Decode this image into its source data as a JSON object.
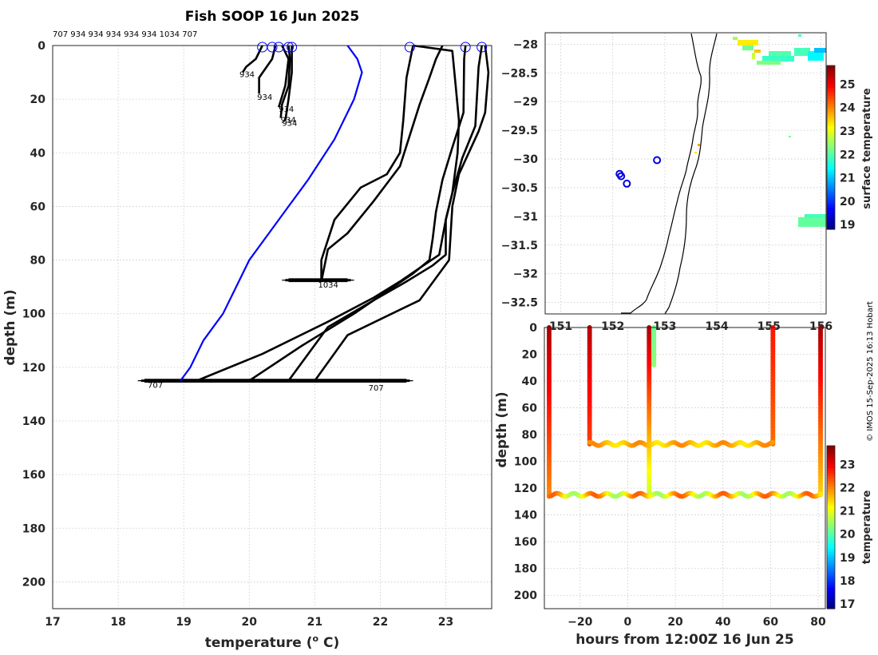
{
  "chart_data": [
    {
      "type": "line",
      "title": "Fish SOOP 16 Jun 2025",
      "xlabel": "temperature (",
      "xlabel_sup": "o",
      "xlabel_unit": " C)",
      "ylabel": "depth (m)",
      "xlim": [
        17,
        23.7
      ],
      "ylim": [
        210,
        0
      ],
      "xticks": [
        17,
        18,
        19,
        20,
        21,
        22,
        23
      ],
      "yticks": [
        0,
        20,
        40,
        60,
        80,
        100,
        120,
        140,
        160,
        180,
        200
      ],
      "header_ids": "707 934 934 934 934 934 1034 707",
      "reference_profile": {
        "color": "#0000ff",
        "temps": [
          21.5,
          21.65,
          21.72,
          21.6,
          21.3,
          20.9,
          20.6,
          20.3,
          20.0,
          19.8,
          19.6,
          19.3,
          19.1,
          18.95
        ],
        "depths": [
          0,
          5,
          10,
          20,
          35,
          50,
          60,
          70,
          80,
          90,
          100,
          110,
          120,
          125
        ]
      },
      "series": [
        {
          "name": "707a",
          "temps": [
            22.5,
            23.1,
            23.15,
            23.2,
            23.18,
            23.1,
            23.0,
            22.9,
            22.6,
            22.3,
            21.9,
            21.2,
            20.2,
            19.2
          ],
          "depths": [
            0,
            2,
            15,
            28,
            40,
            55,
            65,
            78,
            83,
            88,
            94,
            103,
            115,
            125
          ]
        },
        {
          "name": "707b",
          "temps": [
            23.3,
            23.28,
            23.27,
            23.1,
            22.95,
            22.85,
            22.8,
            22.75,
            22.5,
            22.2,
            21.6,
            20.8,
            20.0
          ],
          "depths": [
            0,
            5,
            25,
            38,
            50,
            62,
            72,
            80,
            85,
            90,
            100,
            112,
            125
          ]
        },
        {
          "name": "707c",
          "temps": [
            23.55,
            23.5,
            23.45,
            23.25,
            23.1,
            23.0,
            23.0,
            22.8,
            22.4,
            21.9,
            21.2,
            20.6
          ],
          "depths": [
            0,
            8,
            30,
            42,
            55,
            65,
            78,
            82,
            88,
            95,
            105,
            125
          ]
        },
        {
          "name": "707d",
          "temps": [
            23.6,
            23.65,
            23.6,
            23.5,
            23.2,
            23.1,
            23.05,
            22.75,
            22.6,
            21.5,
            21.0
          ],
          "depths": [
            0,
            10,
            25,
            32,
            48,
            60,
            80,
            90,
            95,
            108,
            125
          ]
        },
        {
          "name": "1034a",
          "temps": [
            22.5,
            22.4,
            22.35,
            22.3,
            22.1,
            21.7,
            21.3,
            21.1,
            21.1
          ],
          "depths": [
            0,
            12,
            28,
            40,
            48,
            53,
            65,
            80,
            88
          ]
        },
        {
          "name": "1034b",
          "temps": [
            22.95,
            22.85,
            22.75,
            22.6,
            22.3,
            21.9,
            21.5,
            21.2,
            21.1
          ],
          "depths": [
            0,
            5,
            12,
            22,
            45,
            58,
            70,
            76,
            88
          ]
        },
        {
          "name": "934a",
          "temps": [
            20.2,
            20.1,
            19.95,
            19.9
          ],
          "depths": [
            0,
            5,
            8,
            10
          ]
        },
        {
          "name": "934b",
          "temps": [
            20.4,
            20.35,
            20.15,
            20.15
          ],
          "depths": [
            0,
            5,
            12,
            18
          ]
        },
        {
          "name": "934c",
          "temps": [
            20.5,
            20.6,
            20.55,
            20.45
          ],
          "depths": [
            0,
            5,
            15,
            23
          ]
        },
        {
          "name": "934d",
          "temps": [
            20.6,
            20.62,
            20.6,
            20.5,
            20.48
          ],
          "depths": [
            0,
            5,
            15,
            22,
            27
          ]
        },
        {
          "name": "934e",
          "temps": [
            20.65,
            20.65,
            20.6,
            20.55
          ],
          "depths": [
            0,
            10,
            20,
            28
          ]
        }
      ],
      "bottom_tows": [
        {
          "tmin": 18.3,
          "tmax": 22.5,
          "depth": 125
        },
        {
          "tmin": 20.5,
          "tmax": 21.6,
          "depth": 87.5
        }
      ],
      "surface_markers": [
        20.2,
        20.35,
        20.45,
        20.6,
        20.65,
        22.45,
        23.3,
        23.55
      ],
      "annotations": [
        {
          "text": "934",
          "t": 19.85,
          "d": 10.5
        },
        {
          "text": "934",
          "t": 20.12,
          "d": 19.0
        },
        {
          "text": "934",
          "t": 20.45,
          "d": 23.5
        },
        {
          "text": "934",
          "t": 20.48,
          "d": 27.5
        },
        {
          "text": "934",
          "t": 20.5,
          "d": 28.8
        },
        {
          "text": "1034",
          "t": 21.05,
          "d": 89.0
        },
        {
          "text": "707",
          "t": 18.45,
          "d": 126.5
        },
        {
          "text": "707",
          "t": 21.82,
          "d": 127.5
        }
      ]
    },
    {
      "type": "heatmap",
      "title": "surface temperature map",
      "xlim": [
        150.7,
        156.1
      ],
      "ylim": [
        -32.7,
        -27.8
      ],
      "xticks": [
        151,
        152,
        153,
        154,
        155,
        156
      ],
      "yticks": [
        -28,
        -28.5,
        -29,
        -29.5,
        -30,
        -30.5,
        -31,
        -31.5,
        -32,
        -32.5
      ],
      "colorbar": {
        "label": "surface temperature",
        "min": 18.8,
        "max": 25.8,
        "ticks": [
          19,
          20,
          21,
          22,
          23,
          24,
          25
        ]
      },
      "stations": [
        {
          "lon": 152.85,
          "lat": -30.02
        },
        {
          "lon": 152.13,
          "lat": -30.26
        },
        {
          "lon": 152.16,
          "lat": -30.3
        },
        {
          "lon": 152.27,
          "lat": -30.43
        }
      ]
    },
    {
      "type": "scatter",
      "title": "depth vs time",
      "xlabel": "hours from 12:00Z 16 Jun 25",
      "ylabel": "depth (m)",
      "xlim": [
        -35,
        83
      ],
      "ylim": [
        210,
        0
      ],
      "xticks": [
        -20,
        0,
        20,
        40,
        60,
        80
      ],
      "yticks": [
        0,
        20,
        40,
        60,
        80,
        100,
        120,
        140,
        160,
        180,
        200
      ],
      "colorbar": {
        "label": "temperature",
        "min": 16.8,
        "max": 23.8,
        "ticks": [
          17,
          18,
          19,
          20,
          21,
          22,
          23
        ]
      },
      "profiles": [
        {
          "hour": -33,
          "from": 0,
          "to": 125,
          "top_temp": 23.5,
          "bottom_temp": 22.0
        },
        {
          "hour": -16,
          "from": 0,
          "to": 87,
          "top_temp": 23.4,
          "bottom_temp": 22.5
        },
        {
          "hour": 9,
          "from": 0,
          "to": 125,
          "top_temp": 23.5,
          "bottom_temp": 20.8
        },
        {
          "hour": 11,
          "from": 0,
          "to": 28,
          "top_temp": 20.2,
          "bottom_temp": 20.4
        },
        {
          "hour": 61,
          "from": 0,
          "to": 87,
          "top_temp": 22.8,
          "bottom_temp": 22.2
        },
        {
          "hour": 81,
          "from": 0,
          "to": 125,
          "top_temp": 23.5,
          "bottom_temp": 21.5
        }
      ],
      "tows": [
        {
          "from": -33,
          "to": 81,
          "depth": 125,
          "temp_min": 20.5,
          "temp_max": 22.3
        },
        {
          "from": -16,
          "to": 61,
          "depth": 87,
          "temp_min": 21.3,
          "temp_max": 22.0
        }
      ]
    }
  ],
  "credit": "© IMOS 15-Sep-2025 16:13 Hobart"
}
